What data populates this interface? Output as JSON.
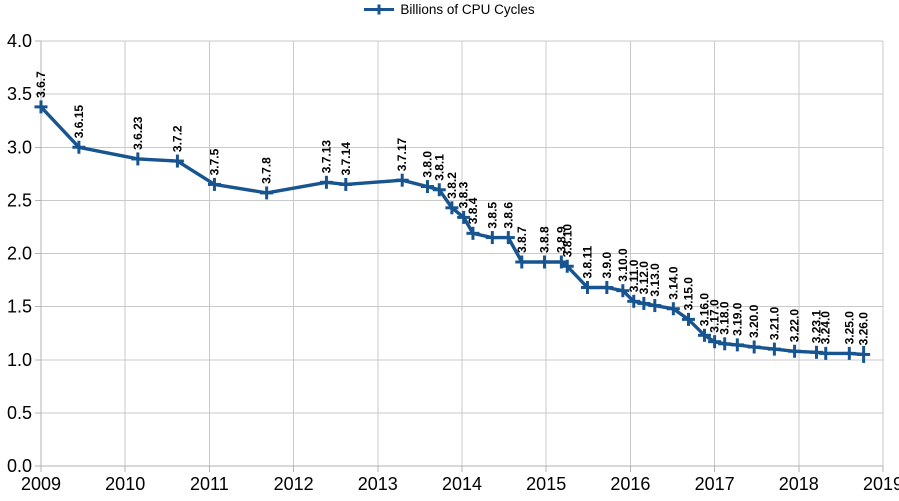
{
  "colors": {
    "series": "#175490",
    "grid": "#c9c9c9",
    "axis": "#b3b3b3",
    "text": "#000000",
    "background": "#ffffff"
  },
  "legend": {
    "label": "Billions of CPU Cycles"
  },
  "chart_data": {
    "type": "line",
    "title": "",
    "xlabel": "",
    "ylabel": "",
    "legend_position": "top-center",
    "grid": true,
    "xlim": [
      2009,
      2019
    ],
    "ylim": [
      0.0,
      4.0
    ],
    "x_axis": {
      "ticks": [
        2009,
        2010,
        2011,
        2012,
        2013,
        2014,
        2015,
        2016,
        2017,
        2018,
        2019
      ]
    },
    "y_axis": {
      "ticks": [
        "0.0",
        "0.5",
        "1.0",
        "1.5",
        "2.0",
        "2.5",
        "3.0",
        "3.5",
        "4.0"
      ]
    },
    "series": [
      {
        "name": "Billions of CPU Cycles",
        "marker": "plus",
        "points": [
          {
            "version": "3.6.7",
            "year": 2009.0,
            "cycles": 3.38
          },
          {
            "version": "3.6.15",
            "year": 2009.45,
            "cycles": 3.0
          },
          {
            "version": "3.6.23",
            "year": 2010.15,
            "cycles": 2.89
          },
          {
            "version": "3.7.2",
            "year": 2010.62,
            "cycles": 2.87
          },
          {
            "version": "3.7.5",
            "year": 2011.06,
            "cycles": 2.65
          },
          {
            "version": "3.7.8",
            "year": 2011.68,
            "cycles": 2.57
          },
          {
            "version": "3.7.13",
            "year": 2012.39,
            "cycles": 2.67
          },
          {
            "version": "3.7.14",
            "year": 2012.62,
            "cycles": 2.65
          },
          {
            "version": "3.7.17",
            "year": 2013.29,
            "cycles": 2.69
          },
          {
            "version": "3.8.0",
            "year": 2013.59,
            "cycles": 2.63
          },
          {
            "version": "3.8.1",
            "year": 2013.73,
            "cycles": 2.6
          },
          {
            "version": "3.8.2",
            "year": 2013.88,
            "cycles": 2.43
          },
          {
            "version": "3.8.3",
            "year": 2014.02,
            "cycles": 2.34
          },
          {
            "version": "3.8.4",
            "year": 2014.13,
            "cycles": 2.19
          },
          {
            "version": "3.8.5",
            "year": 2014.36,
            "cycles": 2.15
          },
          {
            "version": "3.8.6",
            "year": 2014.55,
            "cycles": 2.15
          },
          {
            "version": "3.8.7",
            "year": 2014.71,
            "cycles": 1.92
          },
          {
            "version": "3.8.8",
            "year": 2014.98,
            "cycles": 1.92
          },
          {
            "version": "3.8.9",
            "year": 2015.18,
            "cycles": 1.92
          },
          {
            "version": "3.8.10",
            "year": 2015.25,
            "cycles": 1.88
          },
          {
            "version": "3.8.11",
            "year": 2015.49,
            "cycles": 1.68
          },
          {
            "version": "3.9.0",
            "year": 2015.72,
            "cycles": 1.68
          },
          {
            "version": "3.10.0",
            "year": 2015.91,
            "cycles": 1.65
          },
          {
            "version": "3.11.0",
            "year": 2016.04,
            "cycles": 1.55
          },
          {
            "version": "3.12.0",
            "year": 2016.16,
            "cycles": 1.53
          },
          {
            "version": "3.13.0",
            "year": 2016.29,
            "cycles": 1.51
          },
          {
            "version": "3.14.0",
            "year": 2016.51,
            "cycles": 1.48
          },
          {
            "version": "3.15.0",
            "year": 2016.69,
            "cycles": 1.38
          },
          {
            "version": "3.16.0",
            "year": 2016.88,
            "cycles": 1.23
          },
          {
            "version": "3.17.0",
            "year": 2017.0,
            "cycles": 1.17
          },
          {
            "version": "3.18.0",
            "year": 2017.12,
            "cycles": 1.15
          },
          {
            "version": "3.19.0",
            "year": 2017.27,
            "cycles": 1.14
          },
          {
            "version": "3.20.0",
            "year": 2017.47,
            "cycles": 1.12
          },
          {
            "version": "3.21.0",
            "year": 2017.71,
            "cycles": 1.1
          },
          {
            "version": "3.22.0",
            "year": 2017.95,
            "cycles": 1.08
          },
          {
            "version": "3.23.1",
            "year": 2018.21,
            "cycles": 1.07
          },
          {
            "version": "3.24.0",
            "year": 2018.32,
            "cycles": 1.06
          },
          {
            "version": "3.25.0",
            "year": 2018.6,
            "cycles": 1.06
          },
          {
            "version": "3.26.0",
            "year": 2018.77,
            "cycles": 1.05
          }
        ]
      }
    ]
  }
}
